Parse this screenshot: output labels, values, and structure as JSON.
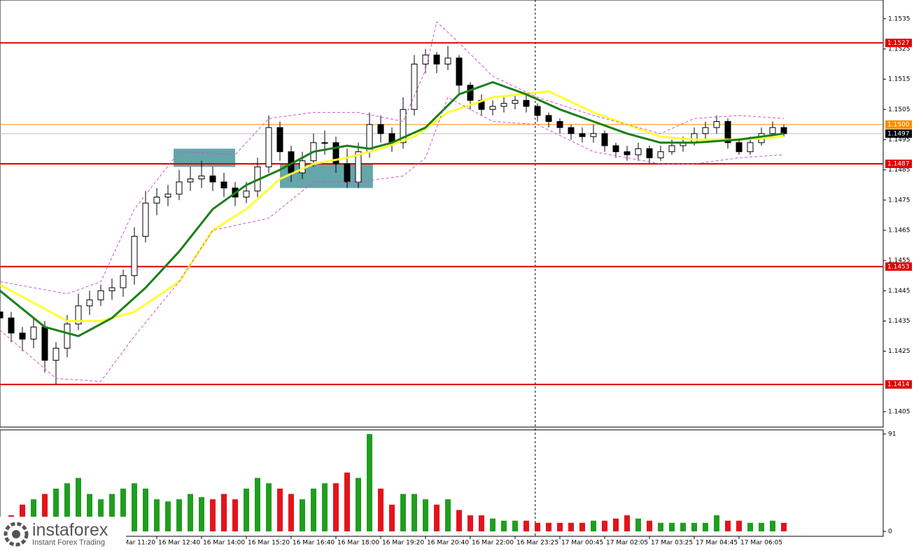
{
  "chart_data": {
    "type": "candlestick",
    "xlim": [
      0,
      78.875
    ],
    "ylim": [
      1.13999,
      1.15412
    ],
    "xticks": [
      {
        "value": 10,
        "label": "16 Mar 11:20"
      },
      {
        "value": 14,
        "label": "16 Mar 12:40"
      },
      {
        "value": 18,
        "label": "16 Mar 14:00"
      },
      {
        "value": 22,
        "label": "16 Mar 15:20"
      },
      {
        "value": 26,
        "label": "16 Mar 16:40"
      },
      {
        "value": 30,
        "label": "16 Mar 18:00"
      },
      {
        "value": 34,
        "label": "16 Mar 19:20"
      },
      {
        "value": 38,
        "label": "16 Mar 20:40"
      },
      {
        "value": 42,
        "label": "16 Mar 22:00"
      },
      {
        "value": 46,
        "label": "16 Mar 23:25"
      },
      {
        "value": 50,
        "label": "17 Mar 00:45"
      },
      {
        "value": 54,
        "label": "17 Mar 02:05"
      },
      {
        "value": 58,
        "label": "17 Mar 03:25"
      },
      {
        "value": 62,
        "label": "17 Mar 04:45"
      },
      {
        "value": 66,
        "label": "17 Mar 06:05"
      }
    ],
    "yticks": [
      1.1405,
      1.1425,
      1.1435,
      1.1445,
      1.1455,
      1.1465,
      1.1475,
      1.1485,
      1.1495,
      1.1505,
      1.1515,
      1.1525,
      1.1535
    ],
    "x": [
      0,
      1,
      2,
      3,
      4,
      5,
      6,
      7,
      8,
      9,
      10,
      11,
      12,
      13,
      14,
      15,
      16,
      17,
      18,
      19,
      20,
      21,
      22,
      23,
      24,
      25,
      26,
      27,
      28,
      29,
      30,
      31,
      32,
      33,
      34,
      35,
      36,
      37,
      38,
      39,
      40,
      41,
      42,
      43,
      44,
      45,
      46,
      47,
      48,
      49,
      50,
      51,
      52,
      53,
      54,
      55,
      56,
      57,
      58,
      59,
      60,
      61,
      62,
      63,
      64,
      65,
      66,
      67,
      68,
      69,
      70
    ],
    "open": [
      1.1438,
      1.1436,
      1.1431,
      1.1429,
      1.1433,
      1.1422,
      1.1426,
      1.1434,
      1.144,
      1.1442,
      1.1445,
      1.1446,
      1.145,
      1.1463,
      1.1474,
      1.1476,
      1.1477,
      1.1481,
      1.1482,
      1.1483,
      1.1481,
      1.1479,
      1.1476,
      1.1478,
      1.1486,
      1.1499,
      1.1491,
      1.1484,
      1.1488,
      1.1494,
      1.1494,
      1.1487,
      1.1481,
      1.1491,
      1.15,
      1.1497,
      1.1494,
      1.1505,
      1.152,
      1.1523,
      1.152,
      1.1522,
      1.1513,
      1.1508,
      1.1505,
      1.1506,
      1.1507,
      1.1508,
      1.1506,
      1.1503,
      1.1501,
      1.1499,
      1.1497,
      1.1496,
      1.1497,
      1.1493,
      1.1491,
      1.149,
      1.1492,
      1.1489,
      1.1491,
      1.1493,
      1.1494,
      1.1497,
      1.1499,
      1.1501,
      1.1494,
      1.1491,
      1.1494,
      1.1497,
      1.1499
    ],
    "high": [
      1.1441,
      1.1438,
      1.1433,
      1.1436,
      1.1435,
      1.1428,
      1.1437,
      1.1444,
      1.1445,
      1.1447,
      1.1449,
      1.1452,
      1.1466,
      1.1478,
      1.1479,
      1.148,
      1.1485,
      1.1486,
      1.1488,
      1.1486,
      1.1484,
      1.1481,
      1.1481,
      1.1489,
      1.1503,
      1.1501,
      1.1493,
      1.1491,
      1.1497,
      1.1498,
      1.1496,
      1.1492,
      1.1494,
      1.1504,
      1.1503,
      1.1499,
      1.1509,
      1.1523,
      1.1525,
      1.1524,
      1.1526,
      1.1523,
      1.1514,
      1.151,
      1.1508,
      1.1509,
      1.151,
      1.151,
      1.1507,
      1.1504,
      1.1502,
      1.15,
      1.1499,
      1.15,
      1.1498,
      1.1494,
      1.1493,
      1.1494,
      1.1493,
      1.1493,
      1.1495,
      1.1496,
      1.1499,
      1.1501,
      1.1503,
      1.1502,
      1.1495,
      1.1496,
      1.1499,
      1.1501,
      1.15
    ],
    "low": [
      1.1433,
      1.1428,
      1.1425,
      1.1426,
      1.1418,
      1.1414,
      1.1423,
      1.1432,
      1.1437,
      1.144,
      1.1442,
      1.1443,
      1.1447,
      1.1461,
      1.147,
      1.1473,
      1.1475,
      1.1478,
      1.1479,
      1.1478,
      1.1476,
      1.1473,
      1.1474,
      1.1476,
      1.1484,
      1.1488,
      1.1481,
      1.1482,
      1.1486,
      1.149,
      1.1484,
      1.1479,
      1.1479,
      1.1489,
      1.1494,
      1.1491,
      1.1492,
      1.1503,
      1.1517,
      1.1517,
      1.1518,
      1.151,
      1.1505,
      1.1503,
      1.1503,
      1.1504,
      1.1505,
      1.1504,
      1.1501,
      1.1499,
      1.1497,
      1.1495,
      1.1494,
      1.1494,
      1.1491,
      1.1489,
      1.1488,
      1.1488,
      1.1487,
      1.1488,
      1.149,
      1.1491,
      1.1493,
      1.1495,
      1.1497,
      1.1492,
      1.149,
      1.149,
      1.1493,
      1.1496,
      1.1496
    ],
    "close": [
      1.1436,
      1.1431,
      1.1429,
      1.1433,
      1.1422,
      1.1426,
      1.1434,
      1.144,
      1.1442,
      1.1445,
      1.1446,
      1.145,
      1.1463,
      1.1474,
      1.1476,
      1.1477,
      1.1481,
      1.1482,
      1.1483,
      1.1481,
      1.1479,
      1.1476,
      1.1478,
      1.1486,
      1.1499,
      1.1491,
      1.1484,
      1.1488,
      1.1494,
      1.1494,
      1.1487,
      1.1481,
      1.1491,
      1.15,
      1.1497,
      1.1494,
      1.1505,
      1.152,
      1.1523,
      1.152,
      1.1522,
      1.1513,
      1.1508,
      1.1505,
      1.1506,
      1.1507,
      1.1508,
      1.1506,
      1.1503,
      1.1501,
      1.1499,
      1.1497,
      1.1496,
      1.1497,
      1.1493,
      1.1491,
      1.149,
      1.1492,
      1.1489,
      1.1491,
      1.1493,
      1.1494,
      1.1497,
      1.1499,
      1.1501,
      1.1494,
      1.1491,
      1.1494,
      1.1497,
      1.1499,
      1.1497
    ],
    "candle_color": "#000000",
    "volume": [
      10,
      15,
      25,
      30,
      35,
      40,
      45,
      50,
      35,
      30,
      35,
      40,
      45,
      40,
      30,
      28,
      30,
      35,
      32,
      30,
      35,
      30,
      40,
      50,
      45,
      40,
      35,
      30,
      40,
      45,
      45,
      55,
      50,
      91,
      40,
      25,
      35,
      35,
      30,
      25,
      30,
      20,
      15,
      15,
      12,
      10,
      10,
      10,
      8,
      8,
      8,
      8,
      8,
      10,
      10,
      12,
      15,
      12,
      10,
      8,
      8,
      8,
      8,
      8,
      15,
      10,
      10,
      8,
      8,
      10,
      8
    ],
    "volume_colors": {
      "up": "#1f9e1f",
      "down": "#e3141c"
    },
    "volume_ylim": [
      -4.6,
      94.9
    ],
    "volume_yticks": [
      0,
      91
    ],
    "lines": [
      {
        "color": "#ffff33",
        "width": 3,
        "dash": false,
        "x": [
          0,
          6,
          9,
          12,
          16,
          19,
          22,
          25,
          28,
          31,
          34,
          37,
          40,
          44,
          49,
          53,
          59,
          62,
          66,
          70
        ],
        "values": [
          1.1447,
          1.1435,
          1.1435,
          1.1438,
          1.1448,
          1.1465,
          1.1472,
          1.1482,
          1.1487,
          1.1489,
          1.1492,
          1.1496,
          1.1504,
          1.1509,
          1.1511,
          1.1504,
          1.1496,
          1.1495,
          1.1495,
          1.1496
        ]
      },
      {
        "color": "#1a7f1a",
        "width": 3,
        "dash": false,
        "x": [
          0,
          4,
          7,
          10,
          13,
          16,
          19,
          22,
          25,
          28,
          31,
          33,
          35,
          38,
          41,
          44,
          47,
          50,
          53,
          56,
          59,
          62,
          66,
          70
        ],
        "values": [
          1.1445,
          1.1433,
          1.143,
          1.1436,
          1.1446,
          1.1458,
          1.1472,
          1.148,
          1.1485,
          1.1491,
          1.1493,
          1.1492,
          1.1494,
          1.1499,
          1.151,
          1.1514,
          1.151,
          1.1505,
          1.1501,
          1.1497,
          1.1494,
          1.1494,
          1.1495,
          1.1497
        ]
      },
      {
        "color": "#cc55cc",
        "width": 1,
        "dash": true,
        "x": [
          0,
          6,
          9,
          12,
          16,
          21,
          24,
          28,
          32,
          36,
          38,
          39,
          41,
          44,
          48,
          53,
          59,
          62,
          66,
          70
        ],
        "values": [
          1.1448,
          1.1444,
          1.1448,
          1.1472,
          1.1491,
          1.149,
          1.1502,
          1.1504,
          1.1504,
          1.1501,
          1.1518,
          1.1534,
          1.1527,
          1.1516,
          1.1509,
          1.1503,
          1.1497,
          1.1502,
          1.1503,
          1.1502
        ]
      },
      {
        "color": "#cc55cc",
        "width": 1,
        "dash": true,
        "x": [
          0,
          5,
          9,
          12,
          16,
          19,
          24,
          28,
          32,
          36,
          38,
          40,
          44,
          48,
          53,
          59,
          62,
          66,
          70
        ],
        "values": [
          1.1432,
          1.1416,
          1.1415,
          1.143,
          1.1448,
          1.1465,
          1.1469,
          1.1481,
          1.1481,
          1.1483,
          1.1489,
          1.1509,
          1.1501,
          1.15,
          1.1491,
          1.1487,
          1.1487,
          1.1489,
          1.149
        ]
      }
    ],
    "levels": [
      {
        "value": 1.1527,
        "color": "#e00000"
      },
      {
        "value": 1.1487,
        "color": "#e00000"
      },
      {
        "value": 1.1453,
        "color": "#e00000"
      },
      {
        "value": 1.1414,
        "color": "#e00000"
      },
      {
        "value": 1.15,
        "label": "1.1500",
        "color": "#ff8c00"
      }
    ],
    "last_price": 1.1497,
    "zones": [
      {
        "x": [
          15.5,
          21
        ],
        "y": [
          1.1492,
          1.1486
        ],
        "color": "#4a979b"
      },
      {
        "x": [
          25,
          33.3
        ],
        "y": [
          1.1487,
          1.1479
        ],
        "color": "#4a979b"
      }
    ],
    "vline_x": 47.8
  },
  "logo": {
    "name": "instaforex",
    "tagline": "Instant Forex Trading"
  }
}
